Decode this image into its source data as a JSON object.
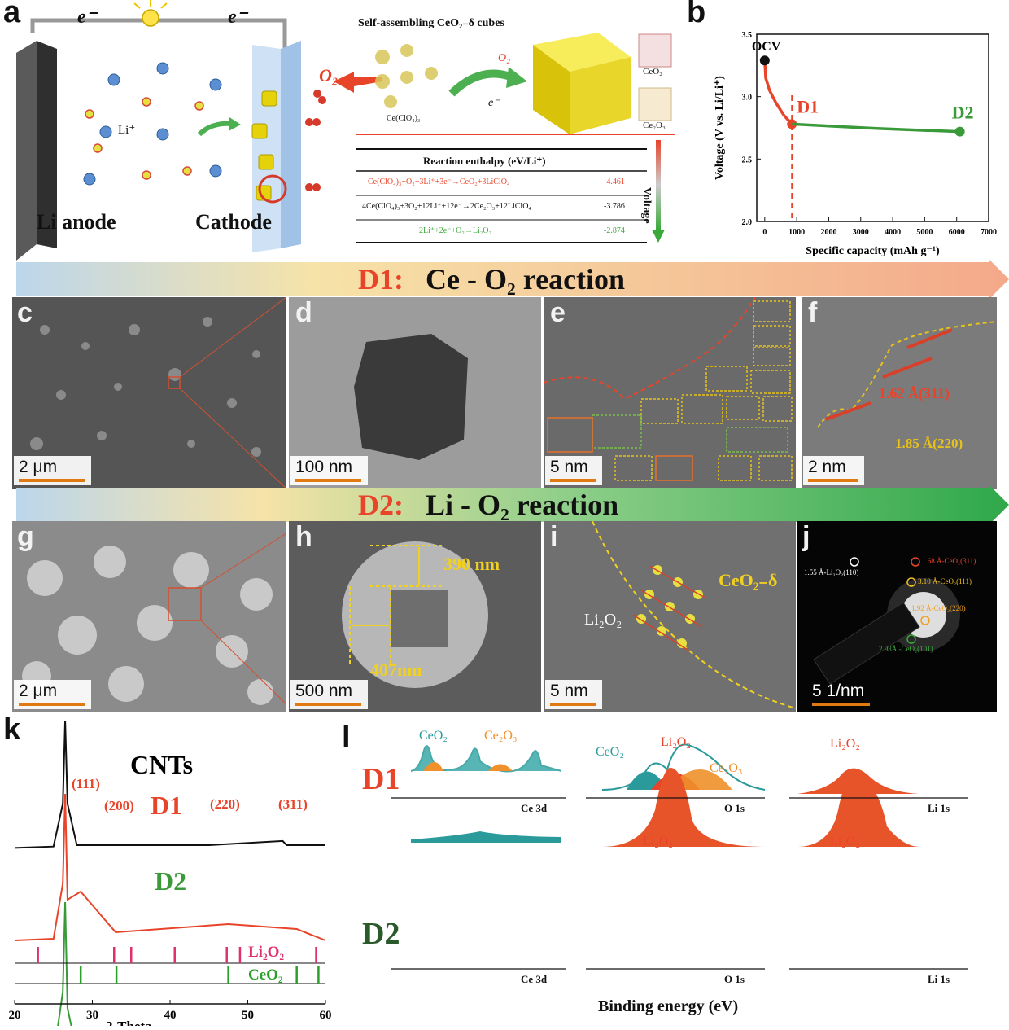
{
  "panel_a": {
    "label": "a",
    "electron_left": "e⁻",
    "electron_right": "e⁻",
    "li_ion": "Li⁺",
    "anode_label": "Li anode",
    "cathode_label": "Cathode",
    "o2_label": "O₂",
    "scheme_title": "Self-assembling CeO₂₋δ cubes",
    "precursor_label": "Ce(ClO₄)₃",
    "o2_small": "O₂",
    "e_label": "e⁻",
    "ceo2_label": "CeO₂",
    "ce2o3_label": "Ce₂O₃",
    "table_header": "Reaction enthalpy (eV/Li⁺)",
    "voltage_arrow_label": "Voltage",
    "reactions": [
      {
        "eq": "Ce(ClO₄)₃+O₂+3Li⁺+3e⁻→CeO₂+3LiClO₄",
        "value": "-4.461",
        "color": "#e8442a"
      },
      {
        "eq": "4Ce(ClO₄)₃+3O₂+12Li⁺+12e⁻→2Ce₂O₃+12LiClO₄",
        "value": "-3.786",
        "color": "#111111"
      },
      {
        "eq": "2Li⁺+2e⁻+O₂→Li₂O₂",
        "value": "-2.874",
        "color": "#3aa93a"
      }
    ]
  },
  "panel_b": {
    "label": "b",
    "ylabel": "Voltage (V vs. Li/Li⁺)",
    "xlabel": "Specific capacity (mAh g⁻¹)",
    "ocv_label": "OCV",
    "d1_label": "D1",
    "d2_label": "D2"
  },
  "banner_d1": {
    "prefix": "D1:",
    "text": "Ce - O₂ reaction"
  },
  "banner_d2": {
    "prefix": "D2:",
    "text": "Li - O₂ reaction"
  },
  "micro_panels": {
    "c": {
      "label": "c",
      "scale": "2 μm"
    },
    "d": {
      "label": "d",
      "scale": "100 nm"
    },
    "e": {
      "label": "e",
      "scale": "5 nm"
    },
    "f": {
      "label": "f",
      "scale": "2 nm",
      "ann1": "1.62 Å(311)",
      "ann2": "1.85 Å(220)"
    },
    "g": {
      "label": "g",
      "scale": "2 μm"
    },
    "h": {
      "label": "h",
      "scale": "500 nm",
      "dim1": "390 nm",
      "dim2": "407nm"
    },
    "i": {
      "label": "i",
      "scale": "5 nm",
      "ceo2": "CeO₂₋δ",
      "li2o2": "Li₂O₂"
    },
    "j": {
      "label": "j",
      "scale": "5 1/nm",
      "rings": [
        "1.55 Å-Li₂O₂(110)",
        "1.68 Å-CeO₂(311)",
        "3.10 Å-CeO₂(111)",
        "1.92 Å-CeO₂(220)",
        "2.98Å -CeO₂(101)"
      ]
    }
  },
  "panel_k": {
    "label": "k",
    "xlabel": "2-Theta",
    "cnts_label": "CNTs",
    "d1_label": "D1",
    "d2_label": "D2",
    "peak_labels": [
      "(111)",
      "(200)",
      "(220)",
      "(311)"
    ],
    "ref1": "Li₂O₂",
    "ref2": "CeO₂"
  },
  "panel_l": {
    "label": "l",
    "row1": "D1",
    "row2": "D2",
    "xlabel": "Binding energy (eV)",
    "ce3d": "Ce 3d",
    "o1s": "O 1s",
    "li1s": "Li 1s",
    "ceo2": "CeO₂",
    "ce2o3": "Ce₂O₃",
    "li2o2": "Li₂O₂"
  },
  "chart_data": [
    {
      "type": "line",
      "title": "",
      "xlabel": "Specific capacity (mAh g⁻¹)",
      "ylabel": "Voltage (V vs. Li/Li⁺)",
      "xlim": [
        -250,
        7000
      ],
      "ylim": [
        2.0,
        3.5
      ],
      "xticks": [
        0,
        1000,
        2000,
        3000,
        4000,
        5000,
        6000,
        7000
      ],
      "yticks": [
        2.0,
        2.5,
        3.0,
        3.5
      ],
      "series": [
        {
          "name": "D1",
          "color": "#e8442a",
          "x": [
            0,
            30,
            150,
            350,
            600,
            850
          ],
          "y": [
            3.29,
            3.15,
            3.05,
            2.95,
            2.85,
            2.78
          ]
        },
        {
          "name": "D2",
          "color": "#3a9a3a",
          "x": [
            850,
            2000,
            3500,
            5000,
            6100
          ],
          "y": [
            2.78,
            2.765,
            2.745,
            2.73,
            2.72
          ]
        }
      ]
    },
    {
      "type": "line",
      "title": "",
      "xlabel": "2-Theta",
      "ylabel": "",
      "xlim": [
        20,
        60
      ],
      "xticks": [
        20,
        30,
        40,
        50,
        60
      ],
      "series": [
        {
          "name": "CNTs",
          "color": "#111111",
          "x": [
            20,
            25,
            26.2,
            26.5,
            26.8,
            28,
            35,
            45,
            54.5,
            55,
            60
          ],
          "y": [
            0.08,
            0.09,
            0.4,
            1.0,
            0.4,
            0.1,
            0.1,
            0.1,
            0.13,
            0.1,
            0.1
          ]
        },
        {
          "name": "D1",
          "color": "#e8442a",
          "x": [
            20,
            25,
            26.2,
            26.5,
            26.8,
            28.5,
            33,
            47.5,
            56.3,
            60
          ],
          "y": [
            0.05,
            0.06,
            0.4,
            0.95,
            0.3,
            0.35,
            0.1,
            0.15,
            0.12,
            0.05
          ]
        },
        {
          "name": "D2",
          "color": "#3a9a3a",
          "x": [
            20,
            25,
            26.2,
            26.5,
            26.8,
            28,
            35,
            45,
            60
          ],
          "y": [
            0.05,
            0.05,
            0.45,
            1.0,
            0.35,
            0.08,
            0.07,
            0.07,
            0.06
          ]
        }
      ],
      "reference_Li2O2": [
        23,
        32.8,
        35,
        40.6,
        47.3,
        49,
        58.8
      ],
      "reference_CeO2": [
        28.5,
        33.1,
        47.5,
        56.3,
        59.1
      ]
    }
  ]
}
